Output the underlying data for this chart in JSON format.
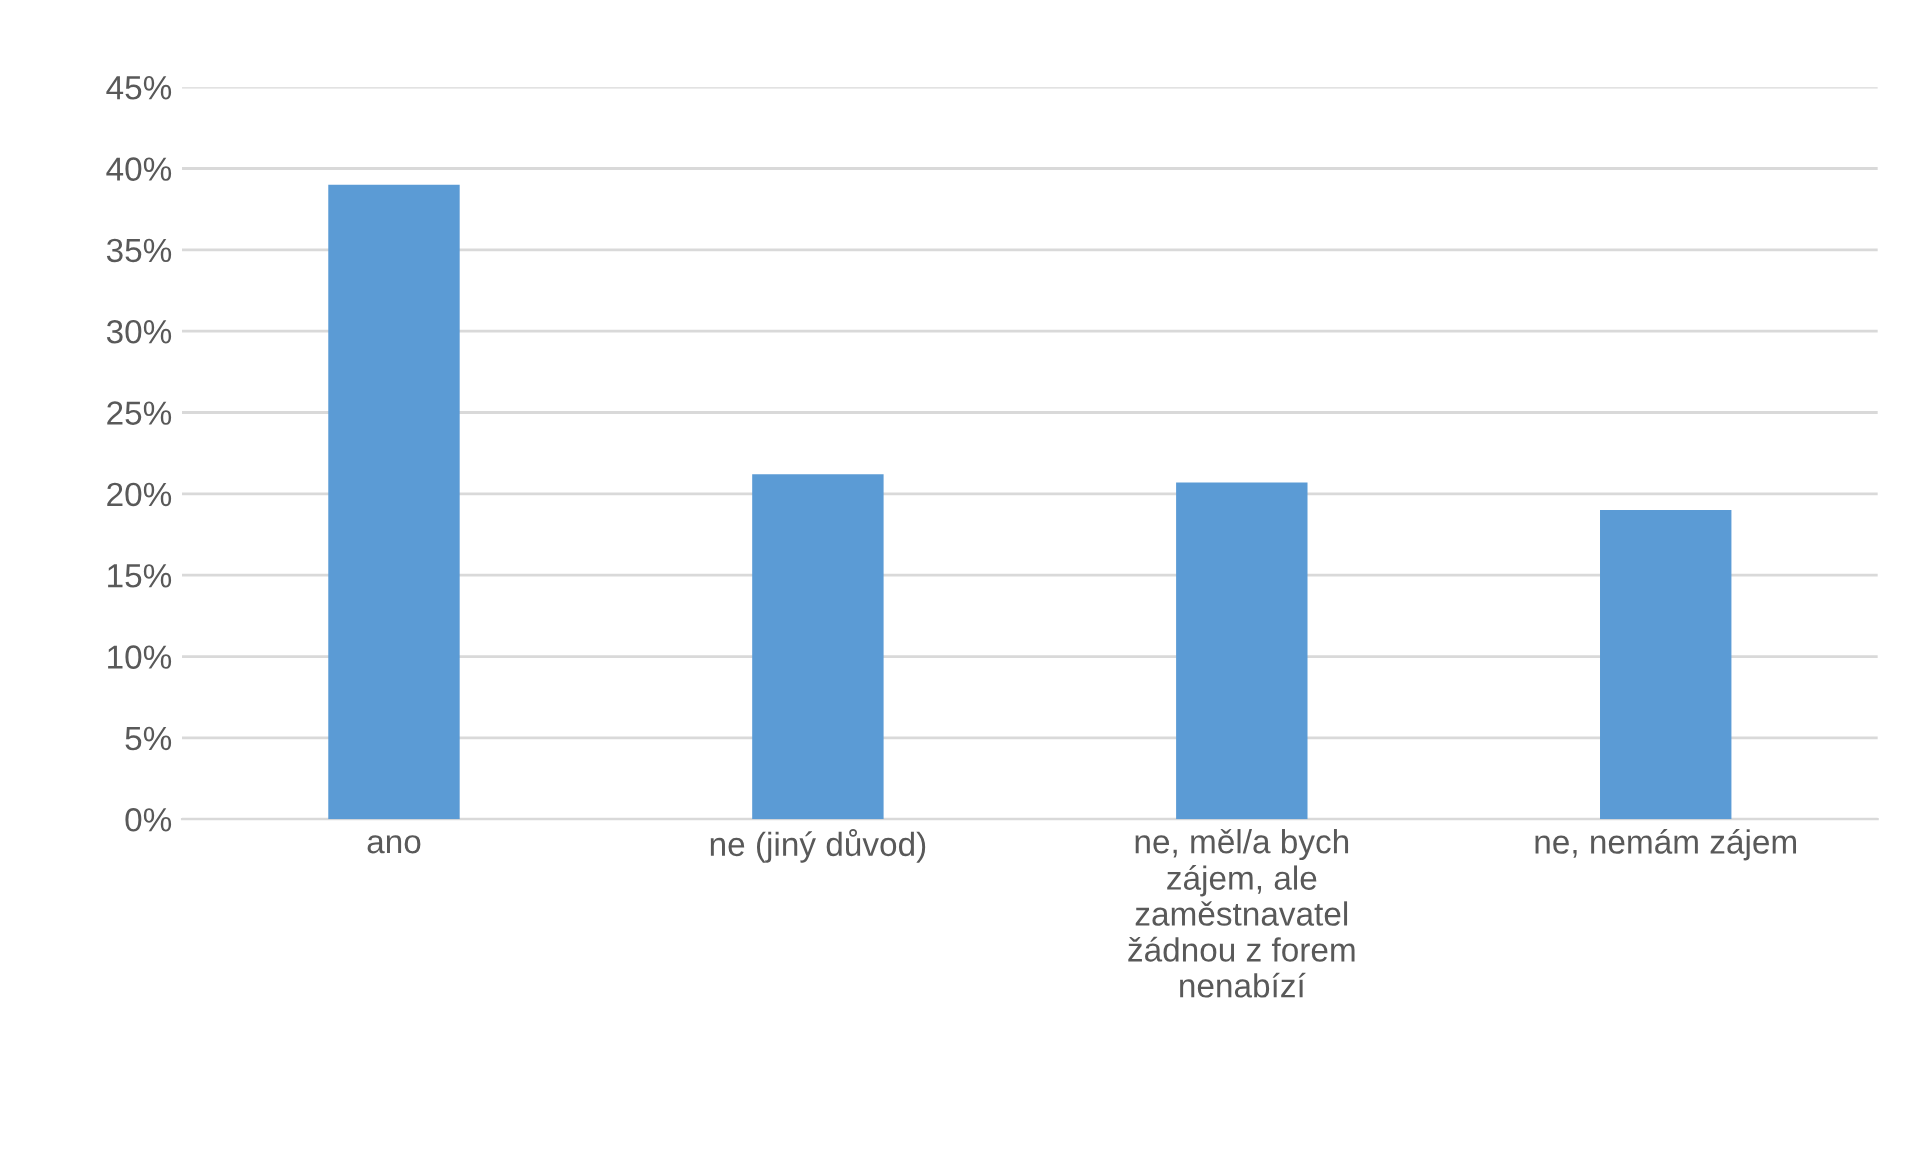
{
  "chart_data": {
    "type": "bar",
    "categories": [
      "ano",
      "ne (jiný důvod)",
      "ne, měl/a bych\nzájem, ale\nzaměstnavatel\nžádnou z forem\nnenabízí",
      "ne, nemám zájem"
    ],
    "values": [
      39,
      21.2,
      20.7,
      19
    ],
    "color": "#5b9bd5",
    "ylim": [
      0,
      45
    ],
    "yticks": [
      {
        "value": 0,
        "label": "0%"
      },
      {
        "value": 5,
        "label": "5%"
      },
      {
        "value": 10,
        "label": "10%"
      },
      {
        "value": 15,
        "label": "15%"
      },
      {
        "value": 20,
        "label": "20%"
      },
      {
        "value": 25,
        "label": "25%"
      },
      {
        "value": 30,
        "label": "30%"
      },
      {
        "value": 35,
        "label": "35%"
      },
      {
        "value": 40,
        "label": "40%"
      },
      {
        "value": 45,
        "label": "45%"
      }
    ],
    "grid": "y"
  }
}
